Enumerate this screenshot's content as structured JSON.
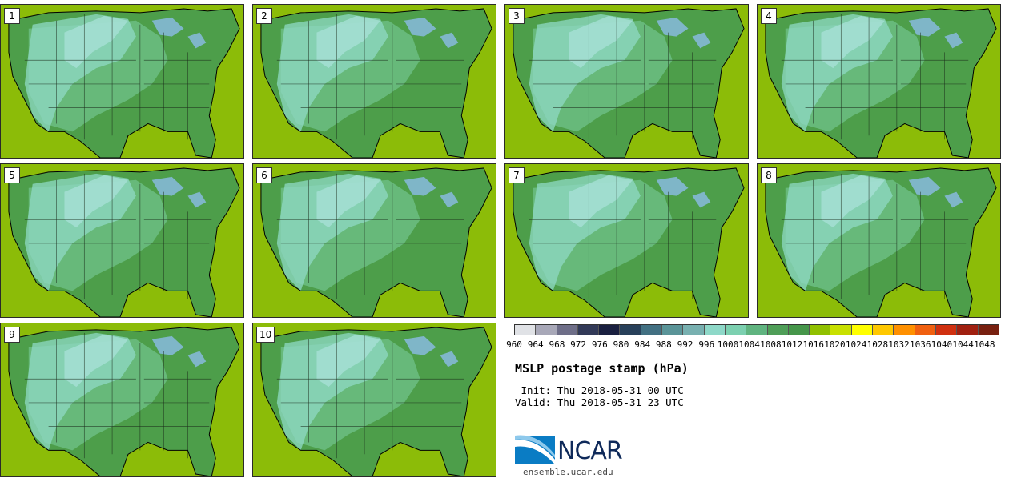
{
  "title": "MSLP postage stamp (hPa)",
  "init": " Init: Thu 2018-05-31 00 UTC",
  "valid": "Valid: Thu 2018-05-31 23 UTC",
  "website": "ensemble.ucar.edu",
  "logo_text": "NCAR",
  "members": [
    {
      "label": "1"
    },
    {
      "label": "2"
    },
    {
      "label": "3"
    },
    {
      "label": "4"
    },
    {
      "label": "5"
    },
    {
      "label": "6"
    },
    {
      "label": "7"
    },
    {
      "label": "8"
    },
    {
      "label": "9"
    },
    {
      "label": "10"
    }
  ],
  "colorbar": {
    "colors": [
      "#e0e2e6",
      "#a8a8b8",
      "#6e6e88",
      "#323a58",
      "#1a2040",
      "#28405a",
      "#427082",
      "#5a9498",
      "#78b0b0",
      "#8ed8c8",
      "#7cd0b0",
      "#60b480",
      "#4f9e58",
      "#46964a",
      "#90c000",
      "#c8e000",
      "#ffff00",
      "#ffc800",
      "#ff9000",
      "#f06010",
      "#d03010",
      "#a02010",
      "#782010"
    ],
    "ticks": [
      "960",
      "964",
      "968",
      "972",
      "976",
      "980",
      "984",
      "988",
      "992",
      "996",
      "1000",
      "1004",
      "1008",
      "1012",
      "1016",
      "1020",
      "1024",
      "1028",
      "1032",
      "1036",
      "1040",
      "1044",
      "1048"
    ]
  },
  "map_colors": {
    "ocean": "#8cbc08",
    "land_base": "#4d9e4a",
    "land_mid": "#67b97a",
    "land_light": "#8fd9c6",
    "land_pale": "#a6e0d6",
    "lake": "#7fb6c8",
    "border": "#1a2a1a"
  }
}
